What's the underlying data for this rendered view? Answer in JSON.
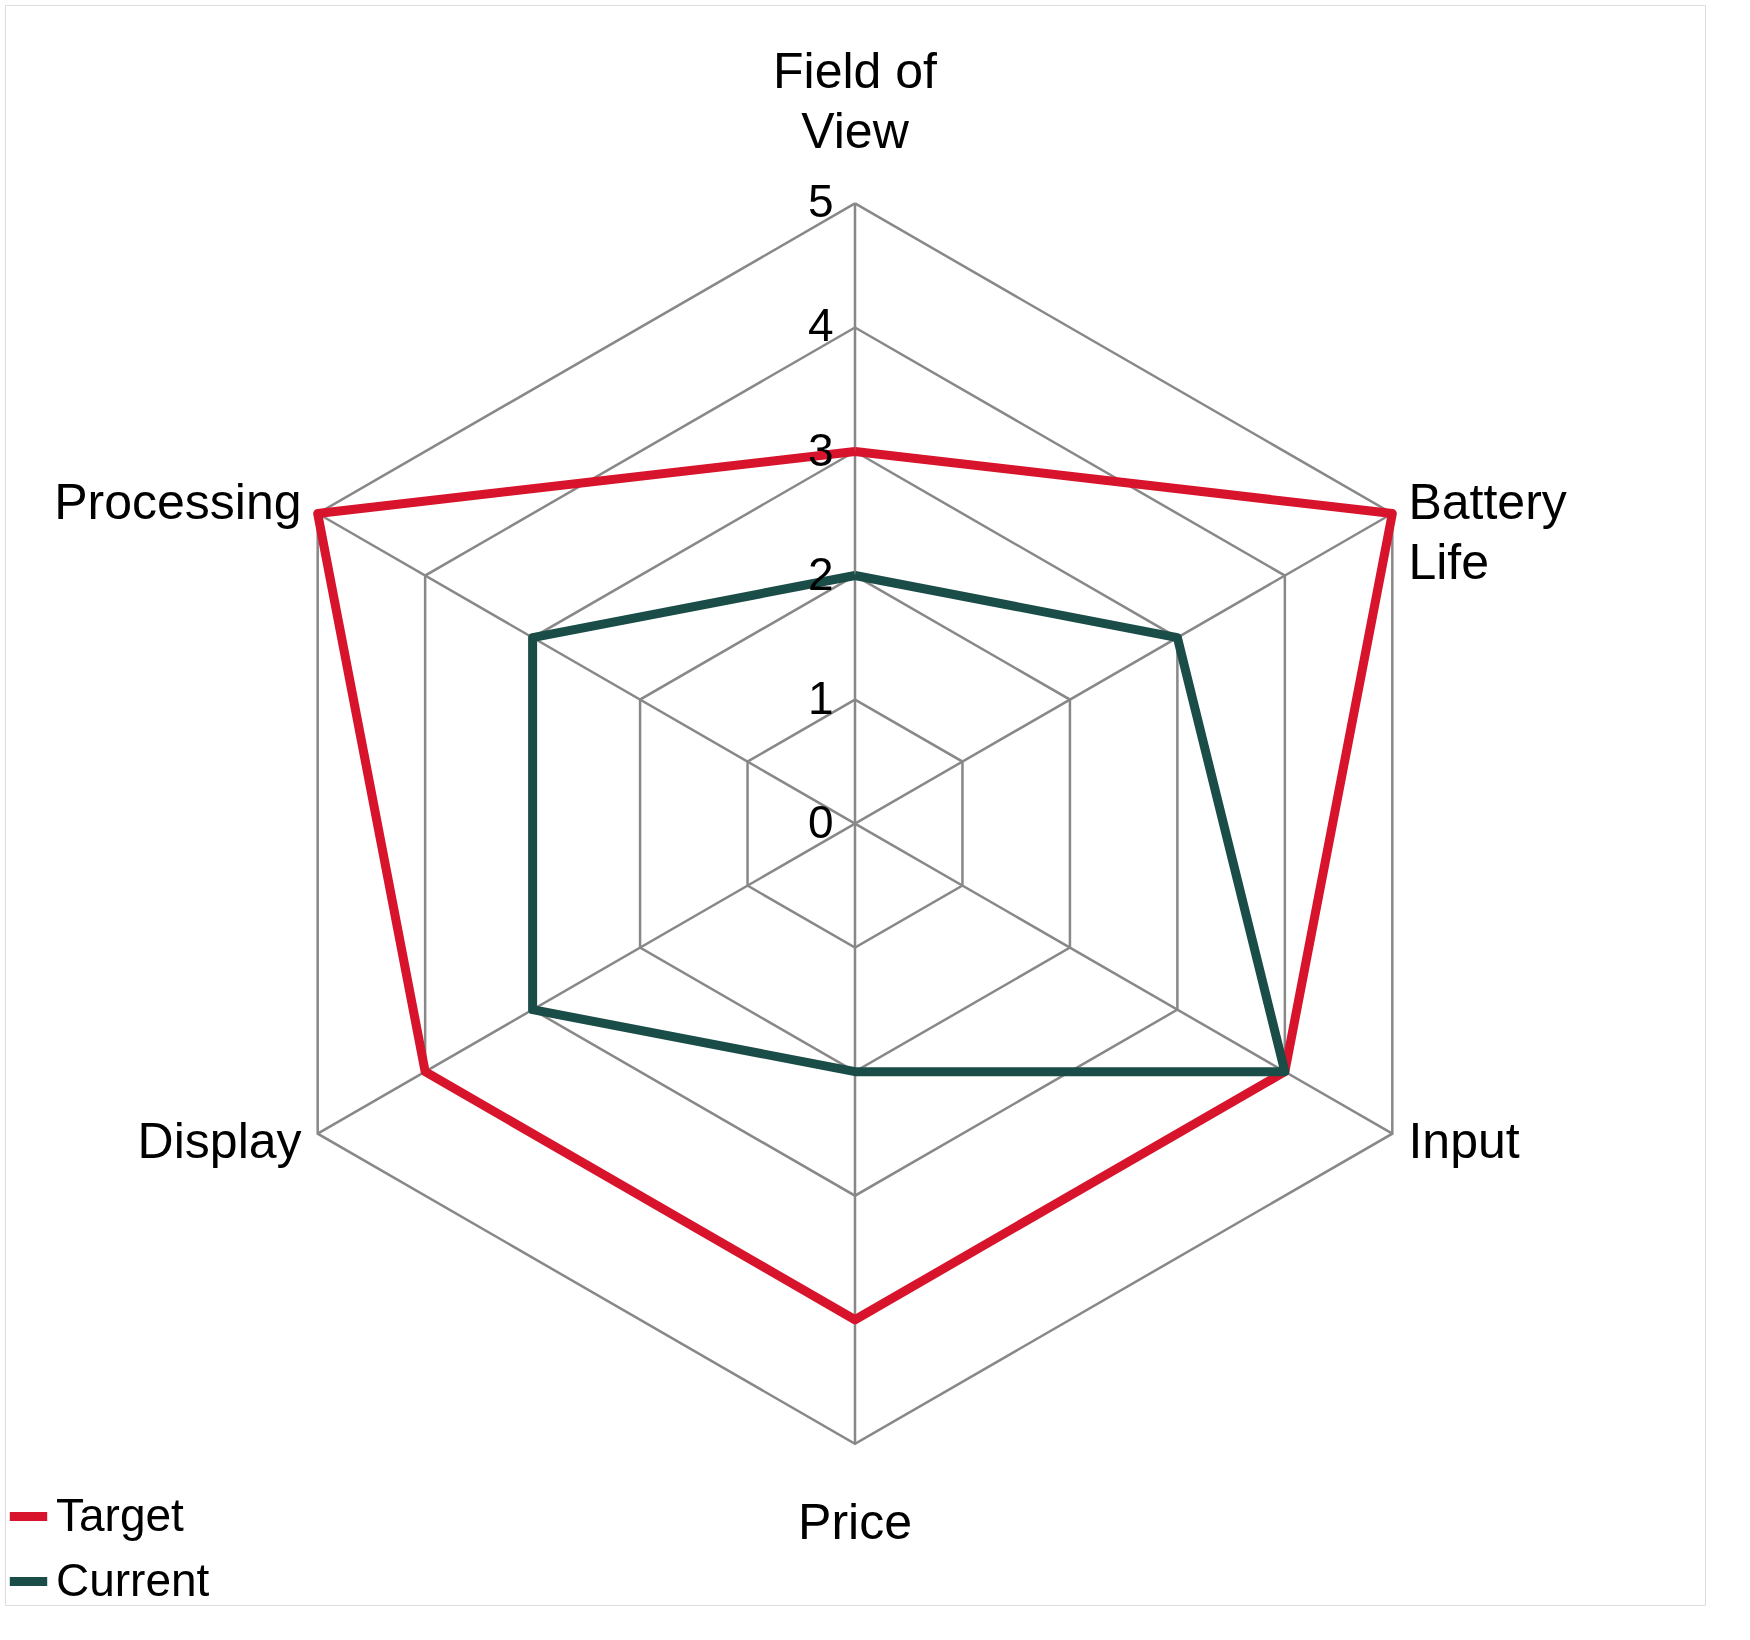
{
  "chart_data": {
    "type": "radar",
    "categories": [
      "Field of View",
      "Battery Life",
      "Input",
      "Price",
      "Display",
      "Processing"
    ],
    "series": [
      {
        "name": "Target",
        "color": "#d7142b",
        "values": [
          3,
          5,
          4,
          4,
          4,
          5
        ]
      },
      {
        "name": "Current",
        "color": "#1a4d47",
        "values": [
          2,
          3,
          4,
          2,
          3,
          3
        ]
      }
    ],
    "ylim": [
      0,
      5
    ],
    "yticks": [
      0,
      1,
      2,
      3,
      4,
      5
    ],
    "grid": true,
    "legend": "bottom left"
  }
}
